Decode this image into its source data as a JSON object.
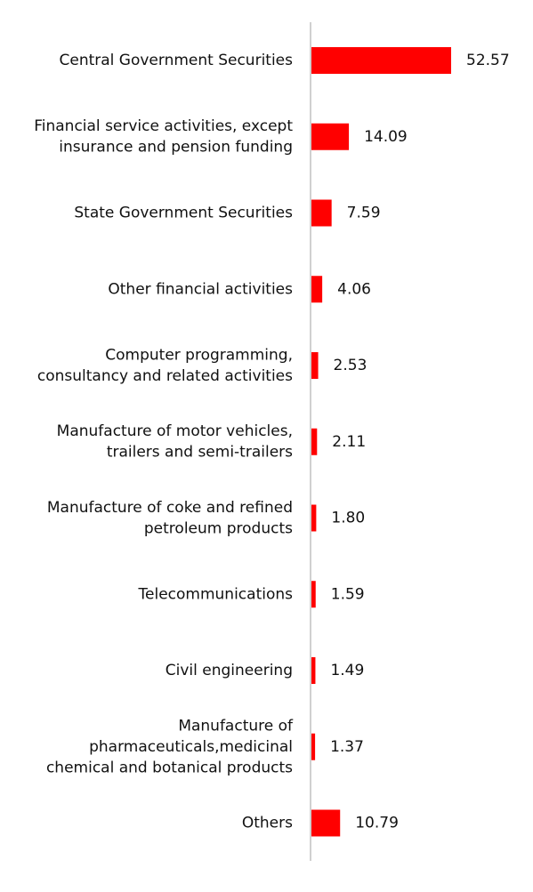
{
  "chart_data": {
    "type": "bar",
    "orientation": "horizontal",
    "categories": [
      [
        "Central Government Securities"
      ],
      [
        "Financial service activities, except",
        "insurance and pension funding"
      ],
      [
        "State Government Securities"
      ],
      [
        "Other financial activities"
      ],
      [
        "Computer programming,",
        "consultancy and related activities"
      ],
      [
        "Manufacture of motor vehicles,",
        "trailers and semi-trailers"
      ],
      [
        "Manufacture of coke and refined",
        "petroleum products"
      ],
      [
        "Telecommunications"
      ],
      [
        "Civil engineering"
      ],
      [
        "Manufacture of",
        "pharmaceuticals,medicinal",
        "chemical and botanical products"
      ],
      [
        "Others"
      ]
    ],
    "values": [
      52.57,
      14.09,
      7.59,
      4.06,
      2.53,
      2.11,
      1.8,
      1.59,
      1.49,
      1.37,
      10.79
    ],
    "value_labels": [
      "52.57",
      "14.09",
      "7.59",
      "4.06",
      "2.53",
      "2.11",
      "1.80",
      "1.59",
      "1.49",
      "1.37",
      "10.79"
    ],
    "title": "",
    "xlabel": "",
    "ylabel": "",
    "xlim": [
      0,
      55
    ],
    "grid": false,
    "legend": "none",
    "bar_color": "#ff0000",
    "axis_color": "#d0d0d0"
  }
}
